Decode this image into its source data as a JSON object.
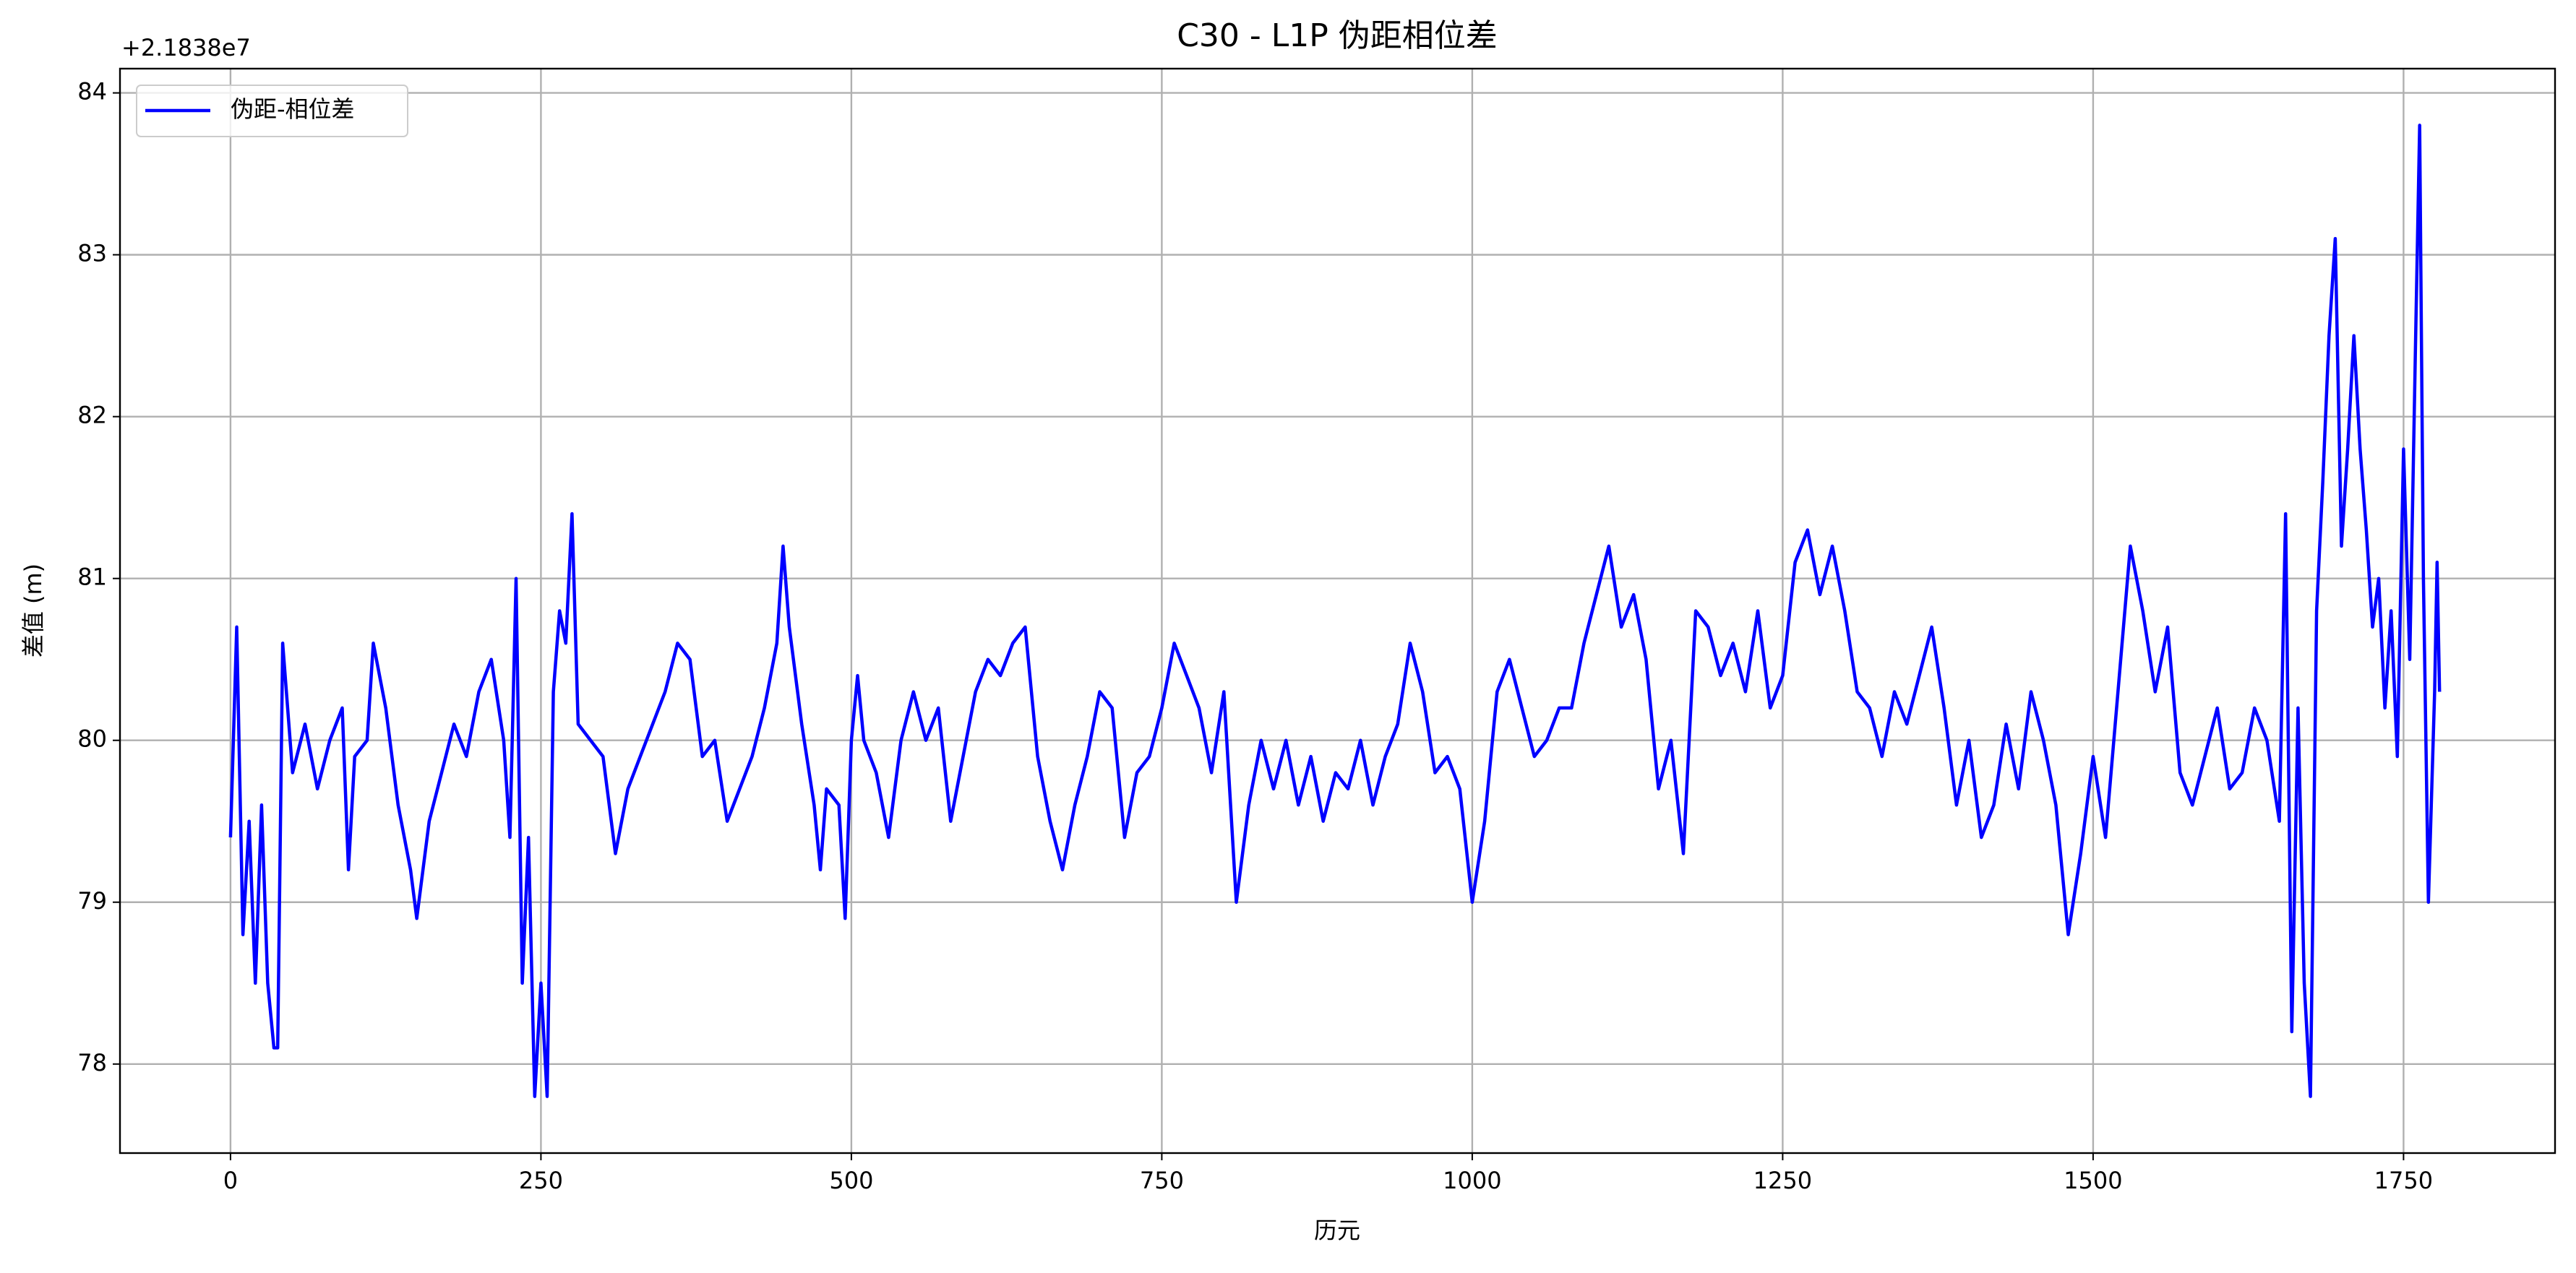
{
  "chart_data": {
    "type": "line",
    "title": "C30 - L1P 伪距相位差",
    "x_label": "历元",
    "y_label": "差值 (m)",
    "y_offset_label": "+2.1838e7",
    "xlim": [
      -89,
      1872
    ],
    "ylim": [
      77.45,
      84.15
    ],
    "xticks": [
      0,
      250,
      500,
      750,
      1000,
      1250,
      1500,
      1750
    ],
    "yticks": [
      78,
      79,
      80,
      81,
      82,
      83,
      84
    ],
    "grid": true,
    "legend": "upper left",
    "x": [
      0,
      5,
      10,
      15,
      20,
      25,
      30,
      35,
      38,
      42,
      50,
      60,
      70,
      80,
      90,
      95,
      100,
      110,
      115,
      125,
      135,
      145,
      150,
      160,
      170,
      180,
      190,
      200,
      210,
      220,
      225,
      230,
      235,
      240,
      245,
      250,
      255,
      260,
      265,
      270,
      275,
      280,
      290,
      300,
      310,
      320,
      330,
      340,
      350,
      360,
      370,
      380,
      390,
      400,
      410,
      420,
      430,
      440,
      445,
      450,
      460,
      470,
      475,
      480,
      490,
      495,
      500,
      505,
      510,
      520,
      530,
      540,
      550,
      560,
      570,
      580,
      590,
      600,
      610,
      620,
      630,
      640,
      650,
      660,
      670,
      680,
      690,
      700,
      710,
      720,
      730,
      740,
      750,
      760,
      770,
      780,
      790,
      800,
      810,
      820,
      830,
      840,
      850,
      860,
      870,
      880,
      890,
      900,
      910,
      920,
      930,
      940,
      950,
      960,
      970,
      980,
      990,
      1000,
      1010,
      1020,
      1030,
      1040,
      1050,
      1060,
      1070,
      1080,
      1090,
      1100,
      1110,
      1120,
      1130,
      1140,
      1150,
      1160,
      1170,
      1180,
      1190,
      1200,
      1210,
      1220,
      1230,
      1240,
      1250,
      1260,
      1270,
      1280,
      1290,
      1300,
      1310,
      1320,
      1330,
      1340,
      1350,
      1360,
      1370,
      1380,
      1390,
      1400,
      1410,
      1420,
      1430,
      1440,
      1450,
      1460,
      1470,
      1480,
      1490,
      1500,
      1510,
      1520,
      1530,
      1540,
      1550,
      1560,
      1570,
      1580,
      1590,
      1600,
      1610,
      1620,
      1630,
      1640,
      1650,
      1655,
      1660,
      1665,
      1670,
      1675,
      1680,
      1685,
      1690,
      1695,
      1700,
      1705,
      1710,
      1715,
      1720,
      1725,
      1730,
      1735,
      1740,
      1745,
      1750,
      1755,
      1760,
      1763,
      1766,
      1770,
      1775,
      1777,
      1779
    ],
    "series": [
      {
        "name": "伪距-相位差",
        "color": "#0000ff",
        "values": [
          79.4,
          80.7,
          78.8,
          79.5,
          78.5,
          79.6,
          78.5,
          78.1,
          78.1,
          80.6,
          79.8,
          80.1,
          79.7,
          80.0,
          80.2,
          79.2,
          79.9,
          80.0,
          80.6,
          80.2,
          79.6,
          79.2,
          78.9,
          79.5,
          79.8,
          80.1,
          79.9,
          80.3,
          80.5,
          80.0,
          79.4,
          81.0,
          78.5,
          79.4,
          77.8,
          78.5,
          77.8,
          80.3,
          80.8,
          80.6,
          81.4,
          80.1,
          80.0,
          79.9,
          79.3,
          79.7,
          79.9,
          80.1,
          80.3,
          80.6,
          80.5,
          79.9,
          80.0,
          79.5,
          79.7,
          79.9,
          80.2,
          80.6,
          81.2,
          80.7,
          80.1,
          79.6,
          79.2,
          79.7,
          79.6,
          78.9,
          80.0,
          80.4,
          80.0,
          79.8,
          79.4,
          80.0,
          80.3,
          80.0,
          80.2,
          79.5,
          79.9,
          80.3,
          80.5,
          80.4,
          80.6,
          80.7,
          79.9,
          79.5,
          79.2,
          79.6,
          79.9,
          80.3,
          80.2,
          79.4,
          79.8,
          79.9,
          80.2,
          80.6,
          80.4,
          80.2,
          79.8,
          80.3,
          79.0,
          79.6,
          80.0,
          79.7,
          80.0,
          79.6,
          79.9,
          79.5,
          79.8,
          79.7,
          80.0,
          79.6,
          79.9,
          80.1,
          80.6,
          80.3,
          79.8,
          79.9,
          79.7,
          79.0,
          79.5,
          80.3,
          80.5,
          80.2,
          79.9,
          80.0,
          80.2,
          80.2,
          80.6,
          80.9,
          81.2,
          80.7,
          80.9,
          80.5,
          79.7,
          80.0,
          79.3,
          80.8,
          80.7,
          80.4,
          80.6,
          80.3,
          80.8,
          80.2,
          80.4,
          81.1,
          81.3,
          80.9,
          81.2,
          80.8,
          80.3,
          80.2,
          79.9,
          80.3,
          80.1,
          80.4,
          80.7,
          80.2,
          79.6,
          80.0,
          79.4,
          79.6,
          80.1,
          79.7,
          80.3,
          80.0,
          79.6,
          78.8,
          79.3,
          79.9,
          79.4,
          80.3,
          81.2,
          80.8,
          80.3,
          80.7,
          79.8,
          79.6,
          79.9,
          80.2,
          79.7,
          79.8,
          80.2,
          80.0,
          79.5,
          81.4,
          78.2,
          80.2,
          78.5,
          77.8,
          80.8,
          81.6,
          82.5,
          83.1,
          81.2,
          81.8,
          82.5,
          81.8,
          81.3,
          80.7,
          81.0,
          80.2,
          80.8,
          79.9,
          81.8,
          80.5,
          82.6,
          83.8,
          81.0,
          79.0,
          80.3,
          81.1,
          80.3
        ]
      }
    ]
  }
}
